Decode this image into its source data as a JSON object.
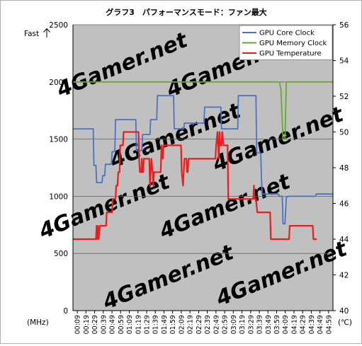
{
  "chart_data": {
    "type": "line",
    "title": "グラフ3　パフォーマンスモード：ファン最大",
    "annotation_fast": "Fast",
    "ylabel": "(MHz)",
    "y2label": "(℃)",
    "ylim": [
      0,
      2500
    ],
    "y2lim": [
      40,
      56
    ],
    "yticks": [
      "0",
      "500",
      "1000",
      "1500",
      "2000",
      "2500"
    ],
    "y2ticks": [
      "40",
      "42",
      "44",
      "46",
      "48",
      "50",
      "52",
      "54",
      "56"
    ],
    "xticks": [
      "00:09",
      "00:19",
      "00:29",
      "00:39",
      "00:49",
      "00:59",
      "01:09",
      "01:19",
      "01:29",
      "01:39",
      "01:49",
      "01:59",
      "02:09",
      "02:19",
      "02:29",
      "02:39",
      "02:49",
      "02:59",
      "03:09",
      "03:19",
      "03:29",
      "03:39",
      "03:49",
      "03:59",
      "04:09",
      "04:19",
      "04:29",
      "04:39",
      "04:49",
      "04:59"
    ],
    "grid": true,
    "legend": "top-right",
    "watermark": "4Gamer.net",
    "series": [
      {
        "name": "GPU Core Clock",
        "axis": "left",
        "color": "#4a72c4",
        "points": [
          [
            0,
            1590
          ],
          [
            3,
            1590
          ],
          [
            3.1,
            1270
          ],
          [
            3.4,
            1270
          ],
          [
            3.5,
            1120
          ],
          [
            4.3,
            1120
          ],
          [
            4.4,
            1180
          ],
          [
            4.7,
            1180
          ],
          [
            4.8,
            1280
          ],
          [
            5.7,
            1280
          ],
          [
            5.8,
            1390
          ],
          [
            6.2,
            1390
          ],
          [
            6.3,
            1670
          ],
          [
            9.3,
            1670
          ],
          [
            9.4,
            1400
          ],
          [
            10.2,
            1400
          ],
          [
            10.3,
            1540
          ],
          [
            11.4,
            1540
          ],
          [
            11.5,
            1670
          ],
          [
            12.4,
            1670
          ],
          [
            12.5,
            1880
          ],
          [
            14.9,
            1880
          ],
          [
            15,
            1590
          ],
          [
            16.4,
            1590
          ],
          [
            16.5,
            1640
          ],
          [
            19.4,
            1640
          ],
          [
            19.5,
            1780
          ],
          [
            21.9,
            1780
          ],
          [
            22,
            1590
          ],
          [
            24.4,
            1590
          ],
          [
            24.5,
            1880
          ],
          [
            27.1,
            1880
          ],
          [
            27.2,
            1380
          ],
          [
            27.8,
            1380
          ],
          [
            28,
            1020
          ],
          [
            30.4,
            1020
          ],
          [
            30.6,
            1000
          ],
          [
            31,
            1000
          ],
          [
            31.1,
            760
          ],
          [
            31.4,
            760
          ],
          [
            31.6,
            990
          ],
          [
            31.9,
            1000
          ],
          [
            35.9,
            1000
          ],
          [
            36,
            1020
          ],
          [
            38.5,
            1020
          ]
        ]
      },
      {
        "name": "GPU Memory Clock",
        "axis": "left",
        "color": "#6aaa2a",
        "points": [
          [
            0,
            2000
          ],
          [
            30.6,
            2000
          ],
          [
            30.8,
            1930
          ],
          [
            31.1,
            1500
          ],
          [
            31.4,
            1500
          ],
          [
            31.6,
            2000
          ],
          [
            38.5,
            2000
          ]
        ]
      },
      {
        "name": "GPU Temperature",
        "axis": "right",
        "color": "#ee1c1c",
        "points": [
          [
            0,
            44
          ],
          [
            3.4,
            44
          ],
          [
            3.5,
            44.75
          ],
          [
            3.6,
            44
          ],
          [
            3.7,
            44.75
          ],
          [
            3.8,
            44
          ],
          [
            4,
            44.75
          ],
          [
            4.9,
            44.75
          ],
          [
            5,
            45.5
          ],
          [
            5.8,
            45.5
          ],
          [
            5.9,
            46.25
          ],
          [
            6.3,
            46.25
          ],
          [
            6.4,
            47
          ],
          [
            6.6,
            47
          ],
          [
            6.7,
            47.75
          ],
          [
            6.9,
            47.75
          ],
          [
            7,
            49.25
          ],
          [
            7.4,
            49.25
          ],
          [
            7.5,
            50
          ],
          [
            9.7,
            50
          ],
          [
            9.8,
            48.5
          ],
          [
            9.9,
            47.75
          ],
          [
            10.1,
            47.75
          ],
          [
            10.2,
            48.5
          ],
          [
            10.3,
            47.75
          ],
          [
            10.4,
            47.75
          ],
          [
            10.5,
            48.5
          ],
          [
            11.3,
            48.5
          ],
          [
            11.4,
            47
          ],
          [
            11.6,
            48.5
          ],
          [
            11.8,
            47.75
          ],
          [
            11.9,
            47
          ],
          [
            12,
            47.75
          ],
          [
            13,
            47.75
          ],
          [
            13.1,
            49.25
          ],
          [
            13.3,
            48.5
          ],
          [
            13.4,
            49.25
          ],
          [
            16,
            49.25
          ],
          [
            16.1,
            47.75
          ],
          [
            16.3,
            47
          ],
          [
            16.5,
            48.5
          ],
          [
            16.8,
            48.5
          ],
          [
            16.9,
            47.75
          ],
          [
            17,
            47.75
          ],
          [
            17.1,
            48.5
          ],
          [
            21.1,
            48.5
          ],
          [
            21.2,
            49.25
          ],
          [
            21.4,
            50
          ],
          [
            21.5,
            49.25
          ],
          [
            21.6,
            48.5
          ],
          [
            21.7,
            50
          ],
          [
            21.8,
            49.25
          ],
          [
            22,
            49.25
          ],
          [
            22.1,
            50
          ],
          [
            22.3,
            49.25
          ],
          [
            22.9,
            49.25
          ],
          [
            23,
            46.25
          ],
          [
            26.7,
            46.25
          ],
          [
            26.8,
            47
          ],
          [
            26.9,
            46.25
          ],
          [
            27.1,
            46.25
          ],
          [
            27.3,
            45.5
          ],
          [
            29.2,
            45.5
          ],
          [
            29.3,
            44
          ],
          [
            32,
            44
          ],
          [
            32.1,
            44.75
          ],
          [
            35.5,
            44.75
          ],
          [
            35.6,
            44
          ],
          [
            36.1,
            44
          ]
        ]
      }
    ]
  }
}
